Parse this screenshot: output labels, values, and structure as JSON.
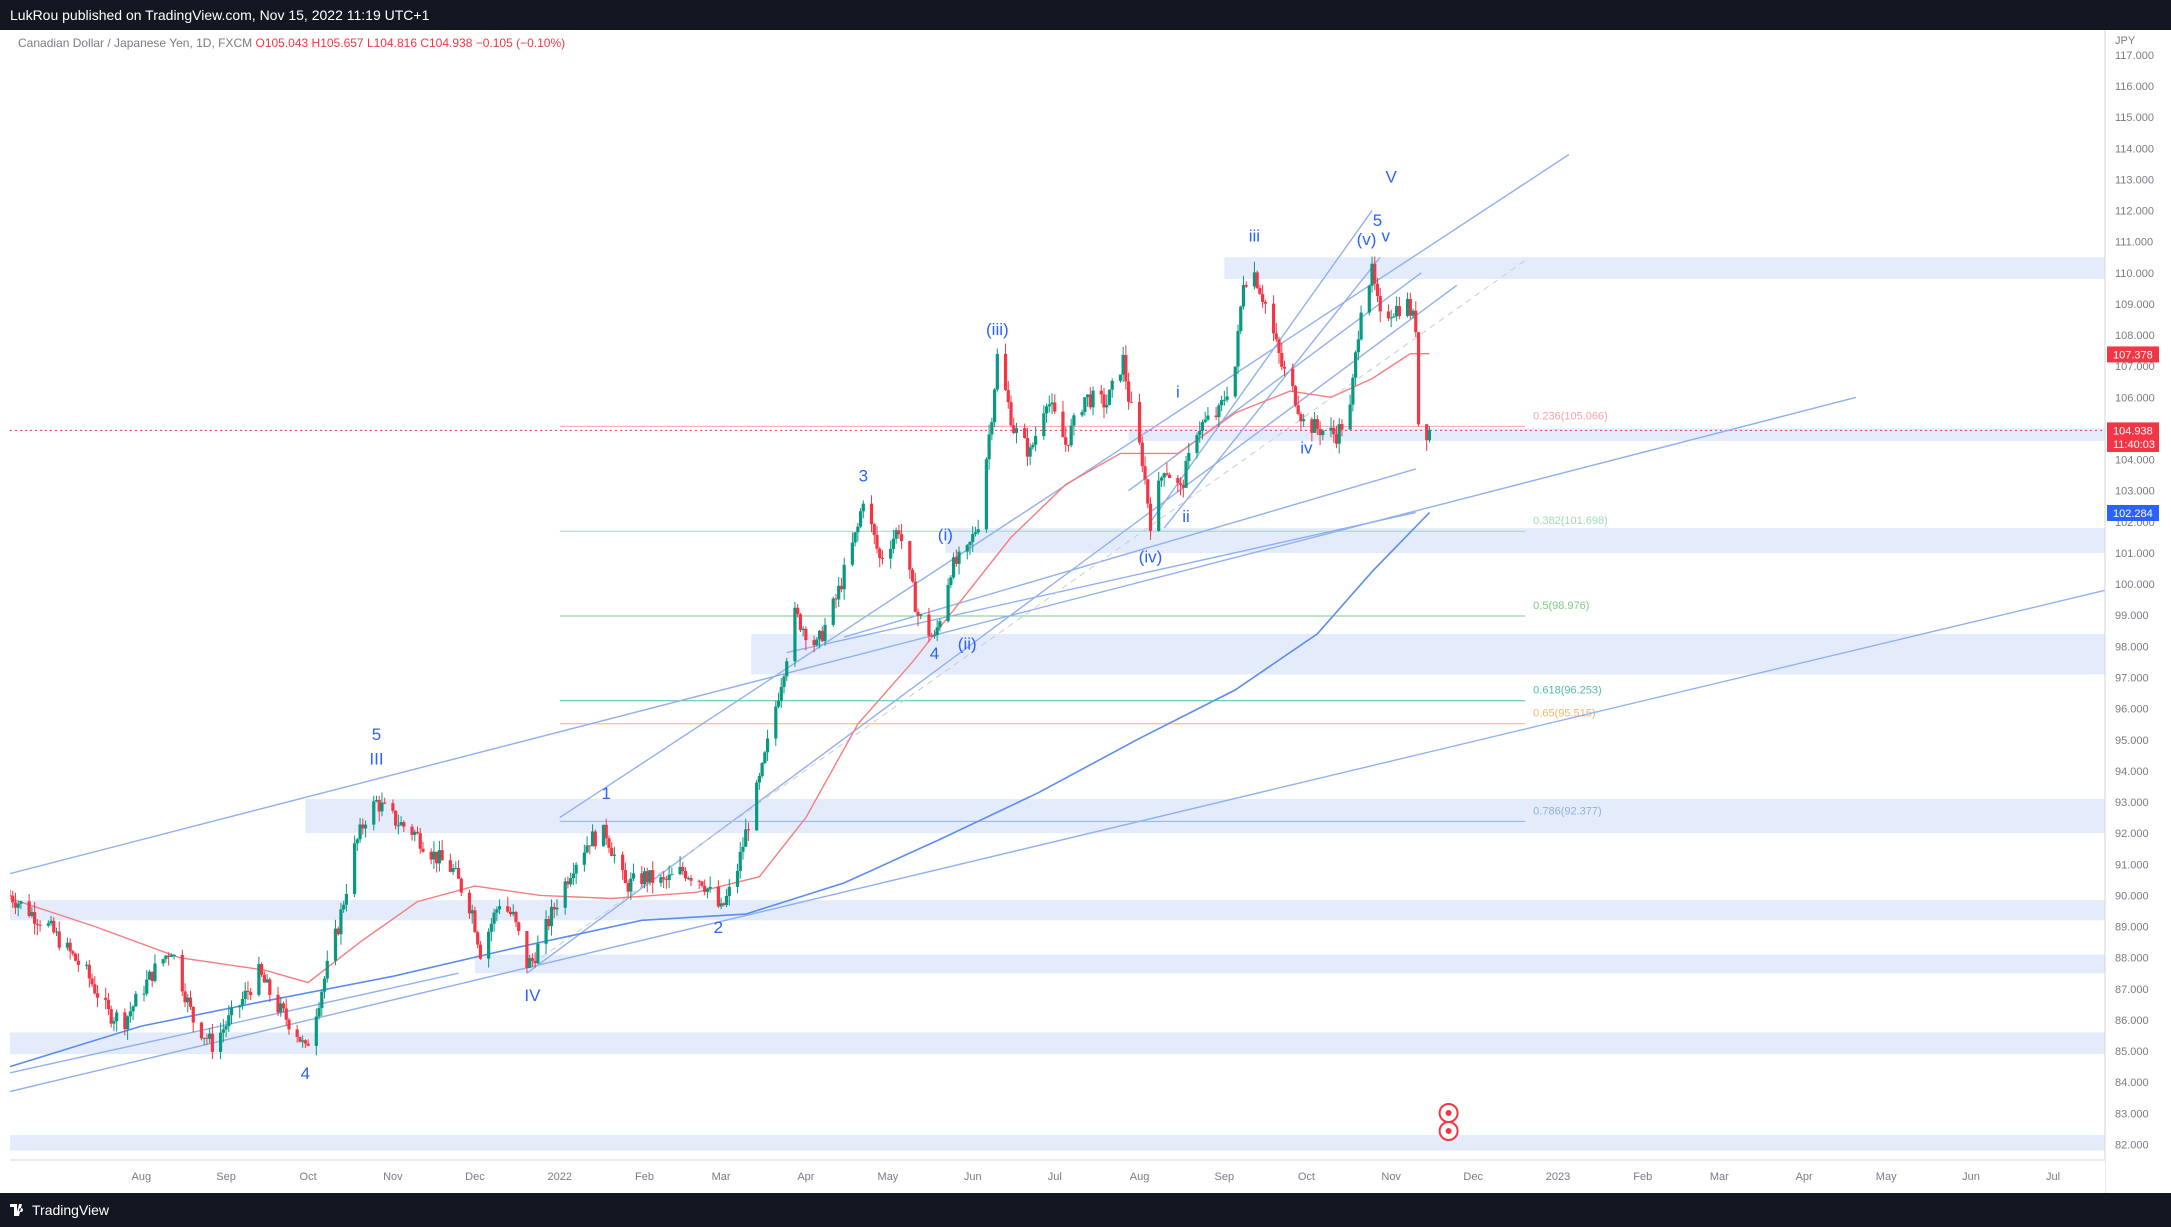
{
  "header": {
    "published": "LukRou published on TradingView.com, Nov 15, 2022 11:19 UTC+1"
  },
  "footer": {
    "brand": "TradingView"
  },
  "legend": {
    "symbol": "Canadian Dollar / Japanese Yen, 1D, FXCM",
    "open": "O105.043",
    "high": "H105.657",
    "low": "L104.816",
    "close": "C104.938",
    "change": "−0.105 (−0.10%)"
  },
  "colors": {
    "up": "#089981",
    "down": "#f23645",
    "ma_short": "#f77c80",
    "ma_long": "#5b8def",
    "trendline": "#90b0f0",
    "zone": "#dbe6fb",
    "wave_label": "#2962ff",
    "axis_text": "#787b86"
  },
  "chart_data": {
    "type": "candlestick",
    "currency_label": "JPY",
    "ylim": [
      81.5,
      117.8
    ],
    "xlim": [
      "2021-06-14",
      "2023-07-20"
    ],
    "y_ticks": [
      "82.000",
      "83.000",
      "84.000",
      "85.000",
      "86.000",
      "87.000",
      "88.000",
      "89.000",
      "90.000",
      "91.000",
      "92.000",
      "93.000",
      "94.000",
      "95.000",
      "96.000",
      "97.000",
      "98.000",
      "99.000",
      "100.000",
      "101.000",
      "102.000",
      "103.000",
      "104.000",
      "105.000",
      "106.000",
      "107.000",
      "108.000",
      "109.000",
      "110.000",
      "111.000",
      "112.000",
      "113.000",
      "114.000",
      "115.000",
      "116.000",
      "117.000"
    ],
    "x_ticks": [
      {
        "label": "Aug",
        "date": "2021-08-01"
      },
      {
        "label": "Sep",
        "date": "2021-09-01"
      },
      {
        "label": "Oct",
        "date": "2021-10-01"
      },
      {
        "label": "Nov",
        "date": "2021-11-01"
      },
      {
        "label": "Dec",
        "date": "2021-12-01"
      },
      {
        "label": "2022",
        "date": "2022-01-01"
      },
      {
        "label": "Feb",
        "date": "2022-02-01"
      },
      {
        "label": "Mar",
        "date": "2022-03-01"
      },
      {
        "label": "Apr",
        "date": "2022-04-01"
      },
      {
        "label": "May",
        "date": "2022-05-01"
      },
      {
        "label": "Jun",
        "date": "2022-06-01"
      },
      {
        "label": "Jul",
        "date": "2022-07-01"
      },
      {
        "label": "Aug",
        "date": "2022-08-01"
      },
      {
        "label": "Sep",
        "date": "2022-09-01"
      },
      {
        "label": "Oct",
        "date": "2022-10-01"
      },
      {
        "label": "Nov",
        "date": "2022-11-01"
      },
      {
        "label": "Dec",
        "date": "2022-12-01"
      },
      {
        "label": "2023",
        "date": "2023-01-01"
      },
      {
        "label": "Feb",
        "date": "2023-02-01"
      },
      {
        "label": "Mar",
        "date": "2023-03-01"
      },
      {
        "label": "Apr",
        "date": "2023-04-01"
      },
      {
        "label": "May",
        "date": "2023-05-01"
      },
      {
        "label": "Jun",
        "date": "2023-06-01"
      },
      {
        "label": "Jul",
        "date": "2023-07-01"
      }
    ],
    "price_path": [
      [
        "2021-06-14",
        90.0
      ],
      [
        "2021-06-28",
        89.0
      ],
      [
        "2021-07-12",
        87.5
      ],
      [
        "2021-07-20",
        86.2
      ],
      [
        "2021-07-26",
        86.0
      ],
      [
        "2021-08-05",
        87.5
      ],
      [
        "2021-08-12",
        88.3
      ],
      [
        "2021-08-20",
        86.0
      ],
      [
        "2021-08-27",
        85.2
      ],
      [
        "2021-09-06",
        86.5
      ],
      [
        "2021-09-13",
        87.5
      ],
      [
        "2021-09-20",
        86.4
      ],
      [
        "2021-09-27",
        85.6
      ],
      [
        "2021-09-30",
        85.0
      ],
      [
        "2021-10-06",
        87.0
      ],
      [
        "2021-10-12",
        89.0
      ],
      [
        "2021-10-18",
        91.5
      ],
      [
        "2021-10-22",
        92.5
      ],
      [
        "2021-10-26",
        93.0
      ],
      [
        "2021-11-02",
        92.4
      ],
      [
        "2021-11-09",
        92.0
      ],
      [
        "2021-11-16",
        91.3
      ],
      [
        "2021-11-23",
        90.8
      ],
      [
        "2021-11-30",
        89.5
      ],
      [
        "2021-12-03",
        88.2
      ],
      [
        "2021-12-10",
        89.8
      ],
      [
        "2021-12-15",
        89.3
      ],
      [
        "2021-12-20",
        87.8
      ],
      [
        "2021-12-22",
        87.9
      ],
      [
        "2021-12-30",
        89.6
      ],
      [
        "2022-01-06",
        91.0
      ],
      [
        "2022-01-12",
        91.8
      ],
      [
        "2022-01-18",
        92.0
      ],
      [
        "2022-01-25",
        90.3
      ],
      [
        "2022-02-01",
        90.6
      ],
      [
        "2022-02-08",
        90.4
      ],
      [
        "2022-02-15",
        90.8
      ],
      [
        "2022-02-22",
        90.5
      ],
      [
        "2022-03-01",
        89.5
      ],
      [
        "2022-03-06",
        90.5
      ],
      [
        "2022-03-10",
        92.0
      ],
      [
        "2022-03-16",
        94.0
      ],
      [
        "2022-03-22",
        96.5
      ],
      [
        "2022-03-28",
        99.0
      ],
      [
        "2022-04-05",
        98.0
      ],
      [
        "2022-04-12",
        99.5
      ],
      [
        "2022-04-20",
        101.8
      ],
      [
        "2022-04-22",
        102.8
      ],
      [
        "2022-04-28",
        100.8
      ],
      [
        "2022-05-05",
        101.8
      ],
      [
        "2022-05-12",
        99.0
      ],
      [
        "2022-05-18",
        98.2
      ],
      [
        "2022-05-24",
        100.5
      ],
      [
        "2022-05-30",
        101.0
      ],
      [
        "2022-06-03",
        102.0
      ],
      [
        "2022-06-08",
        105.5
      ],
      [
        "2022-06-10",
        107.3
      ],
      [
        "2022-06-16",
        105.0
      ],
      [
        "2022-06-22",
        104.2
      ],
      [
        "2022-06-28",
        106.0
      ],
      [
        "2022-07-05",
        104.5
      ],
      [
        "2022-07-12",
        106.0
      ],
      [
        "2022-07-20",
        105.8
      ],
      [
        "2022-07-26",
        107.2
      ],
      [
        "2022-07-28",
        106.0
      ],
      [
        "2022-08-02",
        104.0
      ],
      [
        "2022-08-05",
        102.0
      ],
      [
        "2022-08-10",
        103.8
      ],
      [
        "2022-08-16",
        103.0
      ],
      [
        "2022-08-22",
        105.0
      ],
      [
        "2022-08-30",
        105.5
      ],
      [
        "2022-09-05",
        107.0
      ],
      [
        "2022-09-08",
        109.8
      ],
      [
        "2022-09-12",
        110.0
      ],
      [
        "2022-09-16",
        109.0
      ],
      [
        "2022-09-22",
        107.0
      ],
      [
        "2022-09-27",
        106.0
      ],
      [
        "2022-09-30",
        105.2
      ],
      [
        "2022-10-05",
        105.0
      ],
      [
        "2022-10-12",
        104.8
      ],
      [
        "2022-10-17",
        105.6
      ],
      [
        "2022-10-21",
        109.0
      ],
      [
        "2022-10-25",
        110.0
      ],
      [
        "2022-10-28",
        108.5
      ],
      [
        "2022-11-01",
        108.8
      ],
      [
        "2022-11-07",
        109.0
      ],
      [
        "2022-11-10",
        108.3
      ],
      [
        "2022-11-11",
        105.2
      ],
      [
        "2022-11-14",
        104.9
      ],
      [
        "2022-11-15",
        104.94
      ]
    ],
    "ma_short_path": [
      [
        "2021-06-14",
        89.9
      ],
      [
        "2021-07-15",
        89.0
      ],
      [
        "2021-08-15",
        88.0
      ],
      [
        "2021-09-15",
        87.6
      ],
      [
        "2021-10-01",
        87.2
      ],
      [
        "2021-10-20",
        88.5
      ],
      [
        "2021-11-10",
        89.8
      ],
      [
        "2021-12-01",
        90.3
      ],
      [
        "2021-12-25",
        90.0
      ],
      [
        "2022-01-20",
        89.9
      ],
      [
        "2022-02-20",
        90.1
      ],
      [
        "2022-03-15",
        90.6
      ],
      [
        "2022-04-01",
        92.5
      ],
      [
        "2022-04-20",
        95.5
      ],
      [
        "2022-05-10",
        97.5
      ],
      [
        "2022-05-28",
        99.5
      ],
      [
        "2022-06-15",
        101.5
      ],
      [
        "2022-07-05",
        103.2
      ],
      [
        "2022-07-25",
        104.2
      ],
      [
        "2022-08-15",
        104.2
      ],
      [
        "2022-09-05",
        105.5
      ],
      [
        "2022-09-25",
        106.2
      ],
      [
        "2022-10-10",
        106.0
      ],
      [
        "2022-10-25",
        106.6
      ],
      [
        "2022-11-08",
        107.4
      ],
      [
        "2022-11-15",
        107.4
      ]
    ],
    "ma_long_path": [
      [
        "2021-06-14",
        84.5
      ],
      [
        "2021-08-01",
        85.8
      ],
      [
        "2021-09-15",
        86.6
      ],
      [
        "2021-11-01",
        87.4
      ],
      [
        "2021-12-15",
        88.3
      ],
      [
        "2022-01-31",
        89.2
      ],
      [
        "2022-03-10",
        89.4
      ],
      [
        "2022-04-15",
        90.4
      ],
      [
        "2022-05-20",
        91.8
      ],
      [
        "2022-06-25",
        93.3
      ],
      [
        "2022-07-31",
        95.0
      ],
      [
        "2022-09-05",
        96.6
      ],
      [
        "2022-10-05",
        98.4
      ],
      [
        "2022-10-25",
        100.4
      ],
      [
        "2022-11-15",
        102.3
      ]
    ],
    "zones": [
      {
        "from": "2021-09-30",
        "to": "2023-07-20",
        "low": 92.0,
        "high": 93.1
      },
      {
        "from": "2021-12-01",
        "to": "2023-07-20",
        "low": 87.5,
        "high": 88.1
      },
      {
        "from": "2021-06-14",
        "to": "2023-07-20",
        "low": 84.9,
        "high": 85.6
      },
      {
        "from": "2021-06-14",
        "to": "2023-07-20",
        "low": 89.2,
        "high": 89.85
      },
      {
        "from": "2021-06-14",
        "to": "2023-07-20",
        "low": 81.8,
        "high": 82.3
      },
      {
        "from": "2022-03-12",
        "to": "2023-07-20",
        "low": 97.1,
        "high": 98.4
      },
      {
        "from": "2022-05-22",
        "to": "2023-07-20",
        "low": 101.0,
        "high": 101.8
      },
      {
        "from": "2022-09-01",
        "to": "2023-07-20",
        "low": 109.8,
        "high": 110.5
      },
      {
        "from": "2022-07-28",
        "to": "2023-07-20",
        "low": 104.6,
        "high": 105.0
      }
    ],
    "fib_levels": [
      {
        "label": "0.236(105.066)",
        "value": 105.066,
        "color": "#f7a3a8"
      },
      {
        "label": "0.382(101.698)",
        "value": 101.698,
        "color": "#9fd9b8"
      },
      {
        "label": "0.5(98.976)",
        "value": 98.976,
        "color": "#7ecb86"
      },
      {
        "label": "0.618(96.253)",
        "value": 96.253,
        "color": "#4fbfa0"
      },
      {
        "label": "0.65(95.515)",
        "value": 95.515,
        "color": "#f7b46a"
      },
      {
        "label": "0.786(92.377)",
        "value": 92.377,
        "color": "#8fb2de"
      }
    ],
    "fib_range": {
      "from": "2022-01-01",
      "to": "2022-12-20"
    },
    "trendlines": [
      {
        "from": [
          "2021-06-14",
          90.7
        ],
        "to": [
          "2023-04-20",
          106.0
        ]
      },
      {
        "from": [
          "2021-06-14",
          83.7
        ],
        "to": [
          "2023-07-20",
          99.8
        ]
      },
      {
        "from": [
          "2021-06-14",
          84.3
        ],
        "to": [
          "2021-11-25",
          87.5
        ]
      },
      {
        "from": [
          "2021-12-20",
          87.5
        ],
        "to": [
          "2022-11-25",
          109.6
        ]
      },
      {
        "from": [
          "2022-01-01",
          92.5
        ],
        "to": [
          "2023-01-05",
          113.8
        ]
      },
      {
        "from": [
          "2022-03-25",
          97.8
        ],
        "to": [
          "2022-11-10",
          102.3
        ]
      },
      {
        "from": [
          "2022-04-15",
          98.3
        ],
        "to": [
          "2022-11-10",
          103.7
        ]
      },
      {
        "from": [
          "2022-07-28",
          103.0
        ],
        "to": [
          "2022-11-12",
          110.0
        ]
      },
      {
        "from": [
          "2022-08-05",
          102.0
        ],
        "to": [
          "2022-10-25",
          112.0
        ]
      },
      {
        "from": [
          "2022-08-10",
          101.8
        ],
        "to": [
          "2022-10-28",
          110.5
        ]
      }
    ],
    "dashed_line": {
      "from": [
        "2021-12-22",
        87.8
      ],
      "to": [
        "2022-12-20",
        110.4
      ]
    },
    "wave_labels": [
      {
        "text": "5",
        "date": "2021-10-26",
        "price": 95.0
      },
      {
        "text": "III",
        "date": "2021-10-26",
        "price": 94.2
      },
      {
        "text": "4",
        "date": "2021-09-30",
        "price": 84.1
      },
      {
        "text": "1",
        "date": "2022-01-18",
        "price": 93.1
      },
      {
        "text": "IV",
        "date": "2021-12-22",
        "price": 86.6
      },
      {
        "text": "2",
        "date": "2022-02-28",
        "price": 88.8
      },
      {
        "text": "3",
        "date": "2022-04-22",
        "price": 103.3
      },
      {
        "text": "4",
        "date": "2022-05-18",
        "price": 97.6
      },
      {
        "text": "(i)",
        "date": "2022-05-22",
        "price": 101.4
      },
      {
        "text": "(ii)",
        "date": "2022-05-30",
        "price": 97.9
      },
      {
        "text": "(iii)",
        "date": "2022-06-10",
        "price": 108.0
      },
      {
        "text": "(iv)",
        "date": "2022-08-05",
        "price": 100.7
      },
      {
        "text": "i",
        "date": "2022-08-15",
        "price": 106.0
      },
      {
        "text": "ii",
        "date": "2022-08-18",
        "price": 102.0
      },
      {
        "text": "iii",
        "date": "2022-09-12",
        "price": 111.0
      },
      {
        "text": "iv",
        "date": "2022-10-01",
        "price": 104.2
      },
      {
        "text": "(v)",
        "date": "2022-10-23",
        "price": 110.9
      },
      {
        "text": "5",
        "date": "2022-10-27",
        "price": 111.5
      },
      {
        "text": "v",
        "date": "2022-10-30",
        "price": 111.0
      },
      {
        "text": "V",
        "date": "2022-11-01",
        "price": 112.9
      }
    ],
    "price_badges": [
      {
        "text": "107.378",
        "value": 107.378,
        "color": "#f23645"
      },
      {
        "text": "104.938",
        "value": 104.938,
        "color": "#f23645"
      },
      {
        "text": "11:40:03",
        "value": 104.5,
        "color": "#f23645"
      },
      {
        "text": "102.284",
        "value": 102.284,
        "color": "#2962ff"
      }
    ]
  }
}
